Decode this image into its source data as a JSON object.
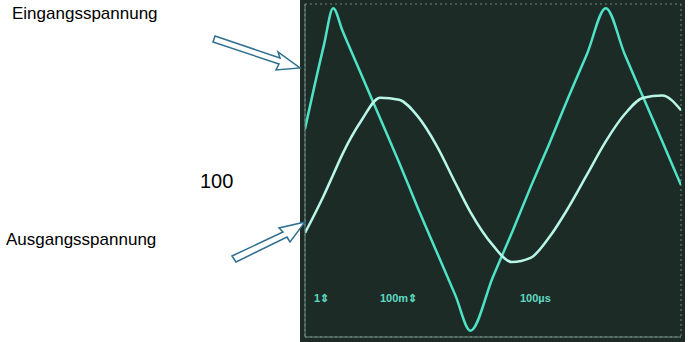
{
  "chart_data": {
    "type": "line",
    "x": [
      0,
      0.5,
      0.75,
      1,
      1.5,
      2,
      2.5,
      3,
      3.5,
      4,
      4.4,
      5,
      5.5,
      6,
      6.5,
      7,
      7.5,
      8,
      8.5,
      9,
      9.5,
      10
    ],
    "series": [
      {
        "name": "Eingangsspannung",
        "color": "#4fe3c6",
        "values": [
          1.0,
          3.0,
          3.9,
          3.35,
          2.3,
          1.25,
          0.2,
          -0.9,
          -1.95,
          -3.0,
          -3.85,
          -2.55,
          -1.5,
          -0.4,
          0.65,
          1.75,
          2.8,
          3.9,
          2.8,
          1.75,
          0.7,
          -0.35
        ]
      },
      {
        "name": "Ausgangsspannung",
        "color": "#b8f7e8",
        "values": [
          -1.5,
          -0.6,
          -0.1,
          0.4,
          1.2,
          1.75,
          1.7,
          1.3,
          0.6,
          -0.3,
          -1.0,
          -1.8,
          -2.2,
          -2.1,
          -1.6,
          -0.9,
          -0.1,
          0.7,
          1.35,
          1.75,
          1.8,
          1.45
        ]
      }
    ],
    "annotations": [
      "100",
      "1⇕",
      "100m⇕",
      "100µs"
    ],
    "xlim": [
      0,
      10
    ],
    "ylim": [
      -4,
      4
    ],
    "xticks": [
      0,
      1,
      2,
      3,
      4,
      5,
      6,
      7,
      8,
      9,
      10
    ],
    "yticks": [
      -4,
      -3,
      -2,
      -1,
      0,
      1,
      2,
      3,
      4
    ],
    "grid": true,
    "tick_labels": false
  }
}
